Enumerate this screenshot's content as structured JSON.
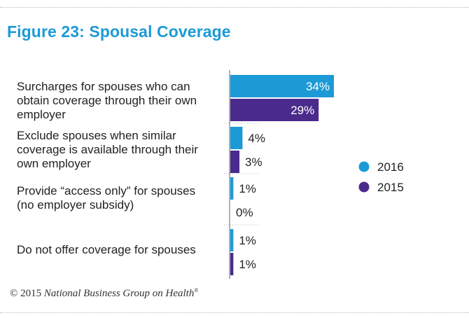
{
  "figure": {
    "title": "Figure 23: Spousal Coverage",
    "footer_prefix": "© 2015 ",
    "footer_org": "National Business Group on Health",
    "footer_mark": "®"
  },
  "chart_data": {
    "type": "bar",
    "orientation": "horizontal",
    "title": "Figure 23: Spousal Coverage",
    "categories": [
      [
        "Surcharges for spouses who can",
        "obtain coverage through their own",
        "employer"
      ],
      [
        "Exclude spouses when similar",
        "coverage is available through their",
        "own employer"
      ],
      [
        "Provide “access only” for spouses",
        "(no employer subsidy)"
      ],
      [
        "Do not offer coverage for spouses"
      ]
    ],
    "series": [
      {
        "name": "2016",
        "color": "#1c9ad6",
        "values": [
          34,
          4,
          1,
          1
        ],
        "labels": [
          "34%",
          "4%",
          "1%",
          "1%"
        ]
      },
      {
        "name": "2015",
        "color": "#4a2b8c",
        "values": [
          29,
          3,
          0,
          1
        ],
        "labels": [
          "29%",
          "3%",
          "0%",
          "1%"
        ]
      }
    ],
    "xlim": [
      0,
      35
    ],
    "grid": false,
    "legend_position": "right"
  }
}
